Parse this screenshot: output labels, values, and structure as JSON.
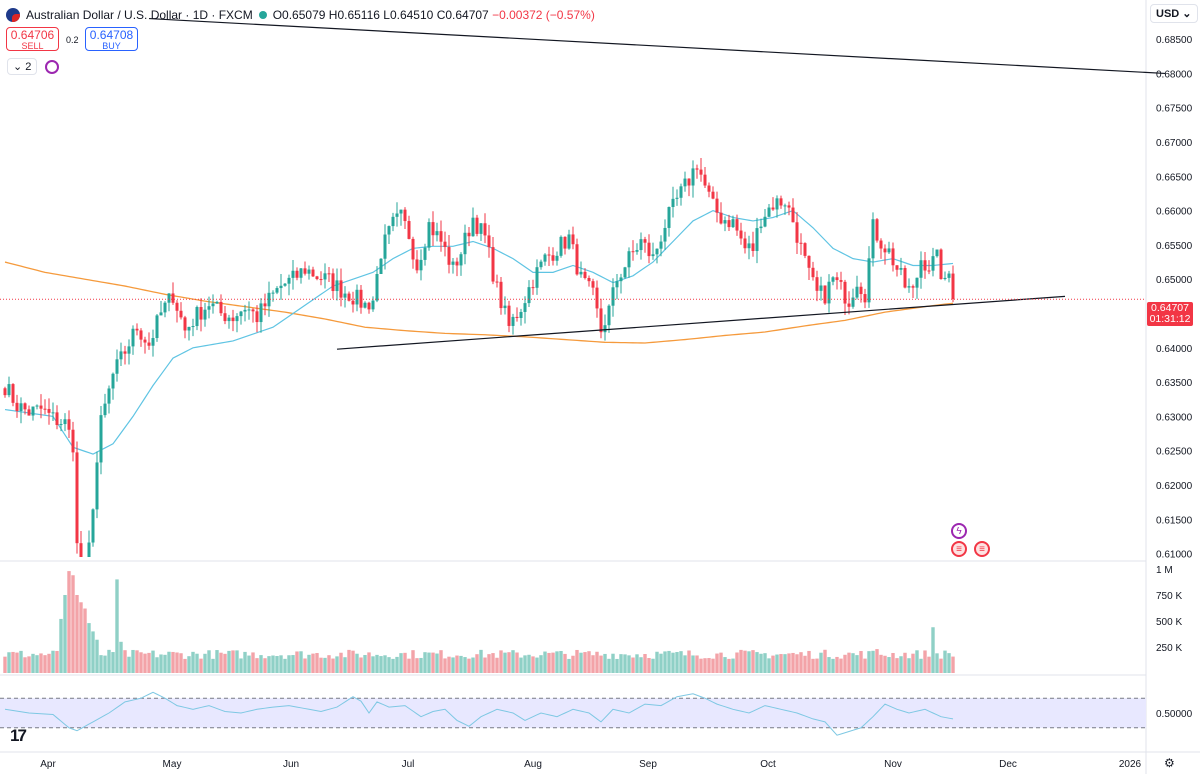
{
  "legend": {
    "symbol_name": "Australian Dollar / U.S. Dollar · 1D · FXCM",
    "open": "O0.65079",
    "high": "H0.65116",
    "low": "L0.64510",
    "close": "C0.64707",
    "change": "−0.00372 (−0.57%)"
  },
  "trade": {
    "sell_price": "0.64706",
    "sell_label": "SELL",
    "spread": "0.2",
    "buy_price": "0.64708",
    "buy_label": "BUY"
  },
  "indicators_collapse": "2",
  "currency": "USD",
  "last_price": {
    "value": "0.64707",
    "countdown": "01:31:12"
  },
  "colors": {
    "up": "#26a69a",
    "down": "#f23645",
    "ma_fast": "#5fc4e3",
    "ma_slow": "#f59a3c",
    "trendline": "#131722",
    "rsi_band": "#e8e8ff"
  },
  "chart_data": [
    {
      "type": "candlestick",
      "pane": "price",
      "x_axis_labels": [
        "Apr",
        "May",
        "Jun",
        "Jul",
        "Aug",
        "Sep",
        "Oct",
        "Nov",
        "Dec",
        "2026"
      ],
      "y_tick_labels": [
        "0.68500",
        "0.68000",
        "0.67500",
        "0.67000",
        "0.66500",
        "0.66000",
        "0.65500",
        "0.65000",
        "0.64500",
        "0.64000",
        "0.63500",
        "0.63000",
        "0.62500",
        "0.62000",
        "0.61500",
        "0.61000"
      ],
      "ylim": [
        0.6095,
        0.6875
      ],
      "close_anchors": [
        [
          0,
          0.6345
        ],
        [
          3,
          0.6316
        ],
        [
          6,
          0.6306
        ],
        [
          9,
          0.631
        ],
        [
          12,
          0.6297
        ],
        [
          15,
          0.629
        ],
        [
          17,
          0.626
        ],
        [
          18,
          0.611
        ],
        [
          20,
          0.604
        ],
        [
          22,
          0.6175
        ],
        [
          24,
          0.629
        ],
        [
          27,
          0.636
        ],
        [
          30,
          0.6395
        ],
        [
          33,
          0.643
        ],
        [
          36,
          0.6405
        ],
        [
          39,
          0.645
        ],
        [
          42,
          0.6478
        ],
        [
          45,
          0.6425
        ],
        [
          48,
          0.6448
        ],
        [
          51,
          0.6465
        ],
        [
          54,
          0.645
        ],
        [
          57,
          0.6445
        ],
        [
          60,
          0.646
        ],
        [
          63,
          0.6445
        ],
        [
          66,
          0.647
        ],
        [
          69,
          0.649
        ],
        [
          72,
          0.65
        ],
        [
          75,
          0.6515
        ],
        [
          78,
          0.6505
        ],
        [
          81,
          0.6498
        ],
        [
          84,
          0.6485
        ],
        [
          87,
          0.6475
        ],
        [
          90,
          0.6462
        ],
        [
          92,
          0.647
        ],
        [
          94,
          0.654
        ],
        [
          97,
          0.658
        ],
        [
          99,
          0.659
        ],
        [
          101,
          0.6565
        ],
        [
          103,
          0.652
        ],
        [
          106,
          0.658
        ],
        [
          109,
          0.6555
        ],
        [
          112,
          0.6515
        ],
        [
          114,
          0.654
        ],
        [
          117,
          0.659
        ],
        [
          120,
          0.656
        ],
        [
          123,
          0.6485
        ],
        [
          126,
          0.643
        ],
        [
          129,
          0.646
        ],
        [
          132,
          0.65
        ],
        [
          135,
          0.653
        ],
        [
          138,
          0.6545
        ],
        [
          141,
          0.656
        ],
        [
          144,
          0.65
        ],
        [
          147,
          0.6475
        ],
        [
          149,
          0.6425
        ],
        [
          151,
          0.6455
        ],
        [
          153,
          0.65
        ],
        [
          156,
          0.653
        ],
        [
          159,
          0.6555
        ],
        [
          162,
          0.653
        ],
        [
          165,
          0.658
        ],
        [
          168,
          0.6615
        ],
        [
          171,
          0.6645
        ],
        [
          173,
          0.667
        ],
        [
          175,
          0.6635
        ],
        [
          177,
          0.6605
        ],
        [
          179,
          0.659
        ],
        [
          182,
          0.6583
        ],
        [
          185,
          0.6545
        ],
        [
          187,
          0.6545
        ],
        [
          189,
          0.659
        ],
        [
          192,
          0.661
        ],
        [
          195,
          0.6615
        ],
        [
          197,
          0.6585
        ],
        [
          199,
          0.6545
        ],
        [
          201,
          0.6505
        ],
        [
          203,
          0.6478
        ],
        [
          205,
          0.6478
        ],
        [
          207,
          0.65
        ],
        [
          209,
          0.6485
        ],
        [
          211,
          0.647
        ],
        [
          213,
          0.65
        ],
        [
          215,
          0.648
        ],
        [
          217,
          0.6575
        ],
        [
          219,
          0.6555
        ],
        [
          221,
          0.654
        ],
        [
          223,
          0.6515
        ],
        [
          225,
          0.649
        ],
        [
          227,
          0.648
        ],
        [
          229,
          0.653
        ],
        [
          231,
          0.652
        ],
        [
          233,
          0.653
        ],
        [
          235,
          0.649
        ],
        [
          236,
          0.6508
        ],
        [
          237,
          0.6471
        ]
      ],
      "ma_fast_anchors": [
        [
          0,
          0.631
        ],
        [
          6,
          0.6305
        ],
        [
          12,
          0.63
        ],
        [
          17,
          0.6255
        ],
        [
          22,
          0.6245
        ],
        [
          27,
          0.626
        ],
        [
          32,
          0.63
        ],
        [
          37,
          0.6345
        ],
        [
          42,
          0.6385
        ],
        [
          47,
          0.64
        ],
        [
          52,
          0.6405
        ],
        [
          57,
          0.641
        ],
        [
          62,
          0.642
        ],
        [
          67,
          0.643
        ],
        [
          72,
          0.645
        ],
        [
          77,
          0.647
        ],
        [
          82,
          0.649
        ],
        [
          87,
          0.65
        ],
        [
          92,
          0.651
        ],
        [
          97,
          0.653
        ],
        [
          102,
          0.6545
        ],
        [
          107,
          0.6548
        ],
        [
          112,
          0.6548
        ],
        [
          117,
          0.6555
        ],
        [
          122,
          0.6545
        ],
        [
          127,
          0.653
        ],
        [
          132,
          0.651
        ],
        [
          137,
          0.651
        ],
        [
          142,
          0.652
        ],
        [
          147,
          0.651
        ],
        [
          152,
          0.6495
        ],
        [
          157,
          0.6505
        ],
        [
          162,
          0.6525
        ],
        [
          167,
          0.6555
        ],
        [
          172,
          0.6585
        ],
        [
          177,
          0.66
        ],
        [
          182,
          0.659
        ],
        [
          187,
          0.6585
        ],
        [
          192,
          0.659
        ],
        [
          197,
          0.66
        ],
        [
          202,
          0.6575
        ],
        [
          207,
          0.6545
        ],
        [
          212,
          0.653
        ],
        [
          217,
          0.6525
        ],
        [
          222,
          0.653
        ],
        [
          227,
          0.652
        ],
        [
          232,
          0.652
        ],
        [
          237,
          0.6523
        ]
      ],
      "ma_slow_anchors": [
        [
          0,
          0.6525
        ],
        [
          10,
          0.651
        ],
        [
          20,
          0.65
        ],
        [
          30,
          0.649
        ],
        [
          40,
          0.6478
        ],
        [
          50,
          0.6468
        ],
        [
          60,
          0.646
        ],
        [
          70,
          0.6452
        ],
        [
          80,
          0.6442
        ],
        [
          90,
          0.643
        ],
        [
          100,
          0.6425
        ],
        [
          110,
          0.6421
        ],
        [
          120,
          0.6419
        ],
        [
          130,
          0.6416
        ],
        [
          140,
          0.6412
        ],
        [
          150,
          0.6408
        ],
        [
          160,
          0.6407
        ],
        [
          170,
          0.6412
        ],
        [
          180,
          0.6418
        ],
        [
          190,
          0.6423
        ],
        [
          200,
          0.6432
        ],
        [
          210,
          0.644
        ],
        [
          220,
          0.6452
        ],
        [
          230,
          0.646
        ],
        [
          237,
          0.6465
        ]
      ],
      "trendlines": [
        {
          "from": [
            36,
            0.688
          ],
          "to": [
            290,
            0.68
          ]
        },
        {
          "from": [
            83,
            0.6398
          ],
          "to": [
            265,
            0.6475
          ]
        }
      ],
      "last_price_line": 0.64707
    },
    {
      "type": "bar",
      "pane": "volume",
      "y_tick_labels": [
        "1 M",
        "750 K",
        "500 K",
        "250 K"
      ],
      "ylim": [
        0,
        1000000
      ],
      "baseline": 180000,
      "spikes": [
        [
          14,
          520000
        ],
        [
          15,
          750000
        ],
        [
          16,
          980000
        ],
        [
          17,
          940000
        ],
        [
          18,
          750000
        ],
        [
          19,
          680000
        ],
        [
          20,
          620000
        ],
        [
          21,
          480000
        ],
        [
          22,
          400000
        ],
        [
          23,
          320000
        ],
        [
          28,
          900000
        ],
        [
          29,
          300000
        ],
        [
          218,
          230000
        ],
        [
          232,
          440000
        ]
      ]
    },
    {
      "type": "line",
      "pane": "rsi",
      "y_tick_labels": [
        "0.50000"
      ],
      "ylim": [
        0,
        100
      ],
      "band": [
        30,
        70
      ],
      "anchors": [
        [
          0,
          55
        ],
        [
          6,
          50
        ],
        [
          12,
          48
        ],
        [
          16,
          30
        ],
        [
          18,
          26
        ],
        [
          22,
          38
        ],
        [
          26,
          50
        ],
        [
          30,
          65
        ],
        [
          34,
          70
        ],
        [
          37,
          78
        ],
        [
          40,
          70
        ],
        [
          43,
          60
        ],
        [
          47,
          55
        ],
        [
          51,
          60
        ],
        [
          55,
          52
        ],
        [
          59,
          50
        ],
        [
          63,
          55
        ],
        [
          67,
          58
        ],
        [
          71,
          60
        ],
        [
          75,
          56
        ],
        [
          79,
          52
        ],
        [
          83,
          58
        ],
        [
          85,
          65
        ],
        [
          87,
          72
        ],
        [
          89,
          66
        ],
        [
          91,
          50
        ],
        [
          93,
          65
        ],
        [
          96,
          58
        ],
        [
          100,
          60
        ],
        [
          104,
          45
        ],
        [
          107,
          52
        ],
        [
          110,
          55
        ],
        [
          113,
          40
        ],
        [
          116,
          32
        ],
        [
          119,
          45
        ],
        [
          123,
          55
        ],
        [
          127,
          50
        ],
        [
          130,
          40
        ],
        [
          134,
          50
        ],
        [
          138,
          45
        ],
        [
          142,
          55
        ],
        [
          146,
          50
        ],
        [
          149,
          38
        ],
        [
          152,
          55
        ],
        [
          156,
          50
        ],
        [
          160,
          62
        ],
        [
          164,
          60
        ],
        [
          168,
          72
        ],
        [
          172,
          76
        ],
        [
          175,
          70
        ],
        [
          178,
          62
        ],
        [
          182,
          55
        ],
        [
          186,
          50
        ],
        [
          190,
          60
        ],
        [
          194,
          55
        ],
        [
          198,
          50
        ],
        [
          202,
          42
        ],
        [
          205,
          38
        ],
        [
          208,
          20
        ],
        [
          211,
          25
        ],
        [
          214,
          30
        ],
        [
          217,
          45
        ],
        [
          220,
          62
        ],
        [
          223,
          55
        ],
        [
          226,
          50
        ],
        [
          230,
          55
        ],
        [
          234,
          45
        ],
        [
          237,
          42
        ]
      ]
    }
  ]
}
